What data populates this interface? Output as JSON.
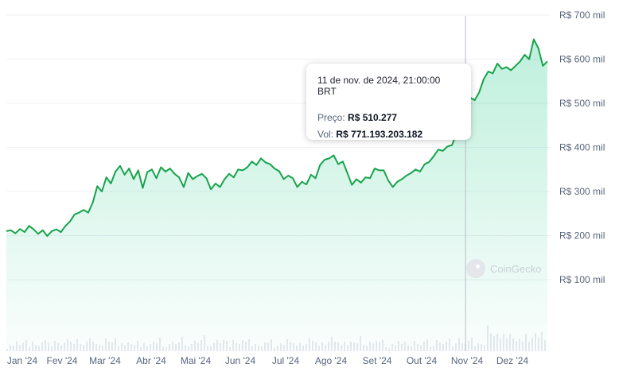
{
  "chart_data": {
    "type": "area",
    "currency_prefix": "R$",
    "y_ticks": [
      "R$ 700 mil",
      "R$ 600 mil",
      "R$ 500 mil",
      "R$ 400 mil",
      "R$ 300 mil",
      "R$ 200 mil",
      "R$ 100 mil"
    ],
    "y_tick_values": [
      700000,
      600000,
      500000,
      400000,
      300000,
      200000,
      100000
    ],
    "x_ticks": [
      "Jan '24",
      "Fev '24",
      "Mar '24",
      "Abr '24",
      "Mai '24",
      "Jun '24",
      "Jul '24",
      "Ago '24",
      "Set '24",
      "Out '24",
      "Nov '24",
      "Dez '24"
    ],
    "ylim": [
      0,
      720000
    ],
    "grid": true,
    "series": [
      {
        "values": [
          210000,
          212000,
          205000,
          215000,
          208000,
          222000,
          214000,
          204000,
          212000,
          199000,
          210000,
          214000,
          208000,
          222000,
          232000,
          248000,
          252000,
          258000,
          252000,
          275000,
          312000,
          300000,
          332000,
          318000,
          345000,
          358000,
          338000,
          352000,
          328000,
          348000,
          308000,
          344000,
          350000,
          330000,
          355000,
          345000,
          352000,
          340000,
          332000,
          310000,
          342000,
          328000,
          335000,
          340000,
          330000,
          305000,
          318000,
          310000,
          328000,
          340000,
          332000,
          350000,
          348000,
          355000,
          368000,
          360000,
          375000,
          366000,
          362000,
          352000,
          346000,
          328000,
          336000,
          330000,
          310000,
          322000,
          316000,
          338000,
          330000,
          360000,
          372000,
          375000,
          382000,
          362000,
          368000,
          342000,
          315000,
          328000,
          320000,
          332000,
          330000,
          352000,
          348000,
          348000,
          325000,
          310000,
          322000,
          328000,
          336000,
          342000,
          350000,
          345000,
          362000,
          367000,
          380000,
          395000,
          392000,
          402000,
          405000,
          430000,
          480000,
          515000,
          513000,
          507000,
          525000,
          555000,
          572000,
          568000,
          590000,
          578000,
          582000,
          575000,
          585000,
          595000,
          610000,
          600000,
          645000,
          625000,
          585000,
          595000
        ]
      }
    ],
    "tooltip": {
      "date": "11 de nov. de 2024, 21:00:00 BRT",
      "price_label": "Preço:",
      "price_value": "R$ 510.277",
      "vol_label": "Vol:",
      "vol_value": "R$ 771.193.203.182"
    },
    "hover_index": 101,
    "line_color": "#16c784",
    "stroke_color": "#17a34a",
    "watermark": "CoinGecko"
  }
}
